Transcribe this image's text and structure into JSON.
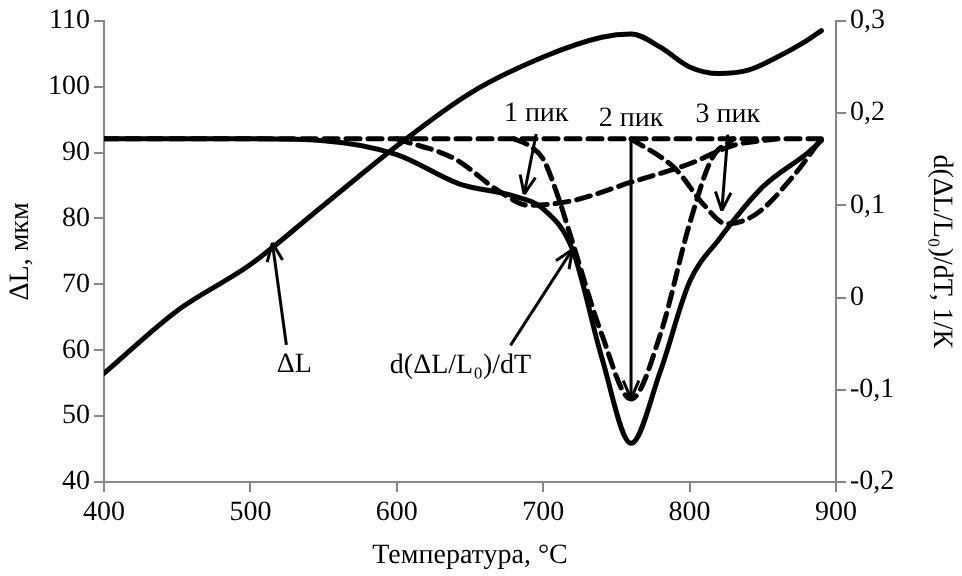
{
  "chart_data": {
    "type": "line",
    "xlabel": "Температура, °C",
    "ylabel": "ΔL, мкм",
    "y2label": "d(ΔL/L₀)/dT, 1/К",
    "xlim": [
      400,
      900
    ],
    "xticks": [
      400,
      500,
      600,
      700,
      800,
      900
    ],
    "ylim": [
      40,
      110
    ],
    "yticks": [
      40,
      50,
      60,
      70,
      80,
      90,
      100,
      110
    ],
    "y2lim": [
      -0.2,
      0.3
    ],
    "y2ticks": [
      {
        "value": -0.2,
        "label": "-0,2"
      },
      {
        "value": -0.1,
        "label": "-0,1"
      },
      {
        "value": 0,
        "label": "0"
      },
      {
        "value": 0.1,
        "label": "0,1"
      },
      {
        "value": 0.2,
        "label": "0,2"
      },
      {
        "value": 0.3,
        "label": "0,3"
      }
    ],
    "grid": false,
    "legend": false,
    "marker": "none",
    "series": [
      {
        "color": "#000000",
        "line_style": "solid",
        "x": [
          400,
          450,
          500,
          550,
          600,
          650,
          700,
          740,
          760,
          780,
          800,
          820,
          840,
          860,
          880,
          890
        ],
        "values": [
          56.5,
          66,
          73,
          82,
          91,
          99,
          104.5,
          107.5,
          108,
          106,
          103,
          102,
          102.5,
          104.5,
          107,
          108.5
        ]
      },
      {
        "color": "#000000",
        "line_style": "solid",
        "axis": "y2",
        "x": [
          400,
          500,
          550,
          600,
          643,
          680,
          700,
          720,
          740,
          760,
          780,
          800,
          820,
          850,
          880,
          890
        ],
        "values": [
          0.172,
          0.172,
          0.17,
          0.155,
          0.123,
          0.11,
          0.096,
          0.052,
          -0.065,
          -0.158,
          -0.08,
          0.017,
          0.063,
          0.12,
          0.156,
          0.17
        ]
      },
      {
        "color": "#000000",
        "line_style": "dashed",
        "axis": "y2",
        "x": [
          400,
          890
        ],
        "values": [
          0.172,
          0.172
        ]
      },
      {
        "color": "#000000",
        "line_style": "dashed",
        "axis": "y2",
        "x": [
          600,
          640,
          670,
          690,
          720,
          760,
          800,
          830,
          860
        ],
        "values": [
          0.172,
          0.15,
          0.115,
          0.1,
          0.105,
          0.125,
          0.145,
          0.165,
          0.172
        ]
      },
      {
        "color": "#000000",
        "line_style": "dashed",
        "axis": "y2",
        "x": [
          680,
          690,
          700,
          710,
          720,
          740,
          760,
          780,
          800,
          815,
          830
        ],
        "values": [
          0.172,
          0.165,
          0.15,
          0.11,
          0.06,
          -0.04,
          -0.11,
          -0.04,
          0.08,
          0.15,
          0.172
        ]
      },
      {
        "color": "#000000",
        "line_style": "dashed",
        "axis": "y2",
        "x": [
          760,
          790,
          810,
          825,
          845,
          870,
          890
        ],
        "values": [
          0.172,
          0.14,
          0.1,
          0.08,
          0.09,
          0.13,
          0.172
        ]
      }
    ],
    "annotations": [
      {
        "text": "ΔL",
        "x": 515,
        "y": 76.3
      },
      {
        "text": "d(ΔL/L₀)/dT",
        "x": 720,
        "y": 75.3
      },
      {
        "text": "1 пик",
        "x": 687,
        "y": 83.7
      },
      {
        "text": "2 пик",
        "x": 760,
        "y": 52.6
      },
      {
        "text": "3 пик",
        "x": 822,
        "y": 81.2
      }
    ]
  }
}
